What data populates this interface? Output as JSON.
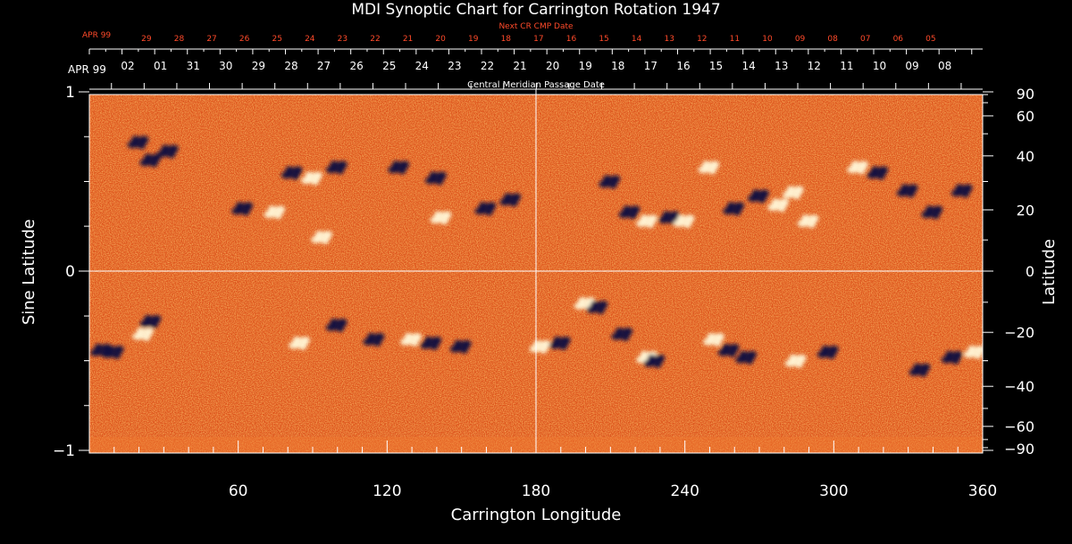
{
  "chart_data": {
    "type": "heatmap",
    "title": "MDI Synoptic Chart for Carrington Rotation 1947",
    "xlabel": "Carrington Longitude",
    "ylabel_left": "Sine Latitude",
    "ylabel_right": "Latitude",
    "xlim": [
      0,
      360
    ],
    "ylim": [
      -1,
      1
    ],
    "x_ticks": [
      60,
      120,
      180,
      240,
      300,
      360
    ],
    "y_ticks_left": [
      {
        "v": 1,
        "label": "1"
      },
      {
        "v": 0,
        "label": "0"
      },
      {
        "v": -1,
        "label": "−1"
      }
    ],
    "y_ticks_right": [
      90,
      60,
      40,
      20,
      0,
      -20,
      -40,
      -60,
      -90
    ],
    "top_axis_main": {
      "label": "Central Meridian Passage Date",
      "month": "APR 99",
      "dates": [
        "02",
        "01",
        "31",
        "30",
        "29",
        "28",
        "27",
        "26",
        "25",
        "24",
        "23",
        "22",
        "21",
        "20",
        "19",
        "18",
        "17",
        "16",
        "15",
        "14",
        "13",
        "12",
        "11",
        "10",
        "09",
        "08"
      ],
      "first_longitude": 15.5,
      "step_longitude": 13.17
    },
    "top_axis_next": {
      "label": "Next CR CMP Date",
      "month": "APR 99",
      "dates": [
        "29",
        "28",
        "27",
        "26",
        "25",
        "24",
        "23",
        "22",
        "21",
        "20",
        "19",
        "18",
        "17",
        "16",
        "15",
        "14",
        "13",
        "12",
        "11",
        "10",
        "09",
        "08",
        "07",
        "06",
        "05"
      ],
      "first_longitude": 23,
      "step_longitude": 13.17,
      "color": "#ff4a2a"
    },
    "background_color": "#e85a1c",
    "grid_lines": {
      "longitude": [
        180
      ],
      "sine_latitude": [
        0
      ]
    },
    "active_regions": [
      {
        "lon": 25,
        "slat": 0.62,
        "polarity": "negative"
      },
      {
        "lon": 32,
        "slat": 0.67,
        "polarity": "negative"
      },
      {
        "lon": 20,
        "slat": 0.72,
        "polarity": "negative"
      },
      {
        "lon": 62,
        "slat": 0.35,
        "polarity": "negative"
      },
      {
        "lon": 75,
        "slat": 0.33,
        "polarity": "positive"
      },
      {
        "lon": 82,
        "slat": 0.55,
        "polarity": "negative"
      },
      {
        "lon": 90,
        "slat": 0.52,
        "polarity": "positive"
      },
      {
        "lon": 94,
        "slat": 0.19,
        "polarity": "positive"
      },
      {
        "lon": 100,
        "slat": 0.58,
        "polarity": "negative"
      },
      {
        "lon": 125,
        "slat": 0.58,
        "polarity": "negative"
      },
      {
        "lon": 140,
        "slat": 0.52,
        "polarity": "negative"
      },
      {
        "lon": 142,
        "slat": 0.3,
        "polarity": "positive"
      },
      {
        "lon": 160,
        "slat": 0.35,
        "polarity": "negative"
      },
      {
        "lon": 170,
        "slat": 0.4,
        "polarity": "negative"
      },
      {
        "lon": 210,
        "slat": 0.5,
        "polarity": "negative"
      },
      {
        "lon": 218,
        "slat": 0.33,
        "polarity": "negative"
      },
      {
        "lon": 225,
        "slat": 0.28,
        "polarity": "positive"
      },
      {
        "lon": 234,
        "slat": 0.3,
        "polarity": "negative"
      },
      {
        "lon": 240,
        "slat": 0.28,
        "polarity": "positive"
      },
      {
        "lon": 250,
        "slat": 0.58,
        "polarity": "positive"
      },
      {
        "lon": 260,
        "slat": 0.35,
        "polarity": "negative"
      },
      {
        "lon": 270,
        "slat": 0.42,
        "polarity": "negative"
      },
      {
        "lon": 278,
        "slat": 0.37,
        "polarity": "positive"
      },
      {
        "lon": 284,
        "slat": 0.44,
        "polarity": "positive"
      },
      {
        "lon": 290,
        "slat": 0.28,
        "polarity": "positive"
      },
      {
        "lon": 310,
        "slat": 0.58,
        "polarity": "positive"
      },
      {
        "lon": 318,
        "slat": 0.55,
        "polarity": "negative"
      },
      {
        "lon": 330,
        "slat": 0.45,
        "polarity": "negative"
      },
      {
        "lon": 340,
        "slat": 0.33,
        "polarity": "negative"
      },
      {
        "lon": 352,
        "slat": 0.45,
        "polarity": "negative"
      },
      {
        "lon": 5,
        "slat": -0.44,
        "polarity": "negative"
      },
      {
        "lon": 10,
        "slat": -0.45,
        "polarity": "negative"
      },
      {
        "lon": 22,
        "slat": -0.35,
        "polarity": "positive"
      },
      {
        "lon": 25,
        "slat": -0.28,
        "polarity": "negative"
      },
      {
        "lon": 85,
        "slat": -0.4,
        "polarity": "positive"
      },
      {
        "lon": 100,
        "slat": -0.3,
        "polarity": "negative"
      },
      {
        "lon": 115,
        "slat": -0.38,
        "polarity": "negative"
      },
      {
        "lon": 130,
        "slat": -0.38,
        "polarity": "positive"
      },
      {
        "lon": 138,
        "slat": -0.4,
        "polarity": "negative"
      },
      {
        "lon": 150,
        "slat": -0.42,
        "polarity": "negative"
      },
      {
        "lon": 182,
        "slat": -0.42,
        "polarity": "positive"
      },
      {
        "lon": 190,
        "slat": -0.4,
        "polarity": "negative"
      },
      {
        "lon": 200,
        "slat": -0.18,
        "polarity": "positive"
      },
      {
        "lon": 205,
        "slat": -0.2,
        "polarity": "negative"
      },
      {
        "lon": 215,
        "slat": -0.35,
        "polarity": "negative"
      },
      {
        "lon": 225,
        "slat": -0.48,
        "polarity": "positive"
      },
      {
        "lon": 228,
        "slat": -0.5,
        "polarity": "negative"
      },
      {
        "lon": 252,
        "slat": -0.38,
        "polarity": "positive"
      },
      {
        "lon": 258,
        "slat": -0.44,
        "polarity": "negative"
      },
      {
        "lon": 265,
        "slat": -0.48,
        "polarity": "negative"
      },
      {
        "lon": 285,
        "slat": -0.5,
        "polarity": "positive"
      },
      {
        "lon": 298,
        "slat": -0.45,
        "polarity": "negative"
      },
      {
        "lon": 335,
        "slat": -0.55,
        "polarity": "negative"
      },
      {
        "lon": 348,
        "slat": -0.48,
        "polarity": "negative"
      },
      {
        "lon": 357,
        "slat": -0.45,
        "polarity": "positive"
      }
    ]
  }
}
